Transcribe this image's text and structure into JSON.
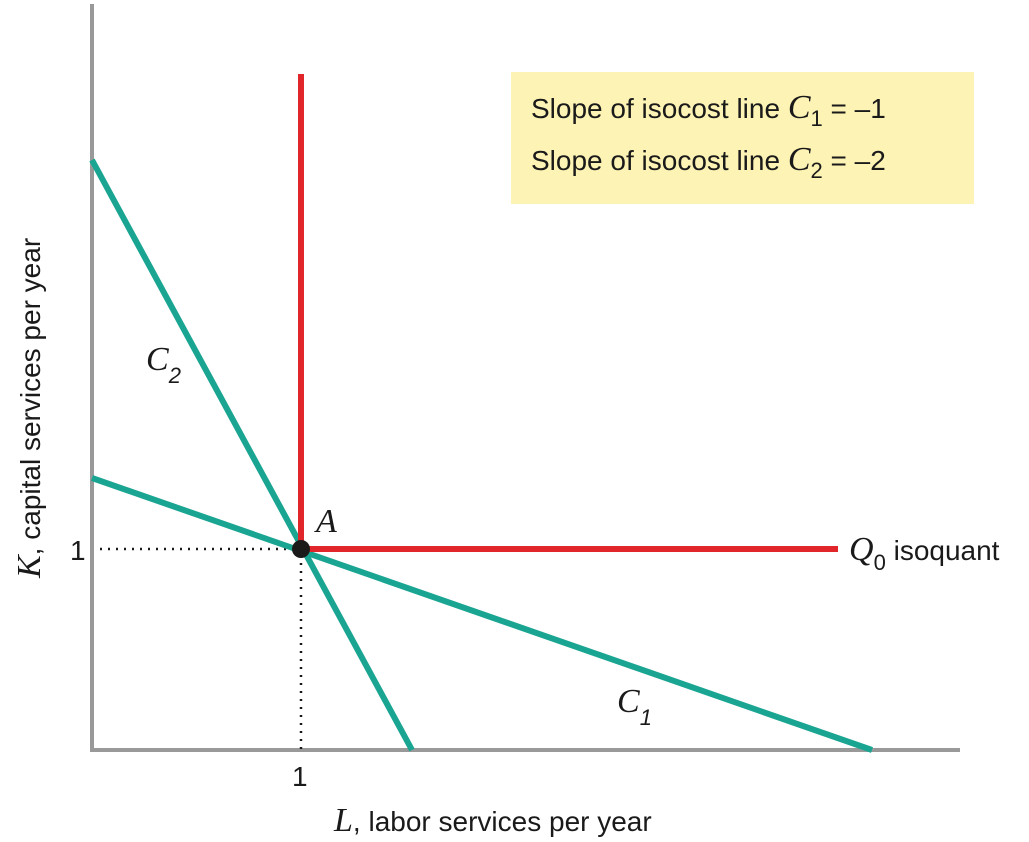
{
  "axes": {
    "x": {
      "var": "L",
      "label": ", labor services per year",
      "tick": "1"
    },
    "y": {
      "var": "K",
      "label": ", capital services per year",
      "tick": "1"
    }
  },
  "isoquant": {
    "var": "Q",
    "sub": "0",
    "label": " isoquant"
  },
  "point": {
    "label": "A"
  },
  "lines": {
    "c1": {
      "var": "C",
      "sub": "1"
    },
    "c2": {
      "var": "C",
      "sub": "2"
    }
  },
  "legend": {
    "line1": {
      "prefix": "Slope of isocost line ",
      "var": "C",
      "sub": "1",
      "suffix": " = –1"
    },
    "line2": {
      "prefix": "Slope of isocost line ",
      "var": "C",
      "sub": "2",
      "suffix": " = –2"
    }
  },
  "colors": {
    "axis": "#999999",
    "isoquant": "#e0262b",
    "isocost": "#1aa592",
    "legend_bg": "#fdf3b5",
    "point": "#1a1a1a"
  }
}
